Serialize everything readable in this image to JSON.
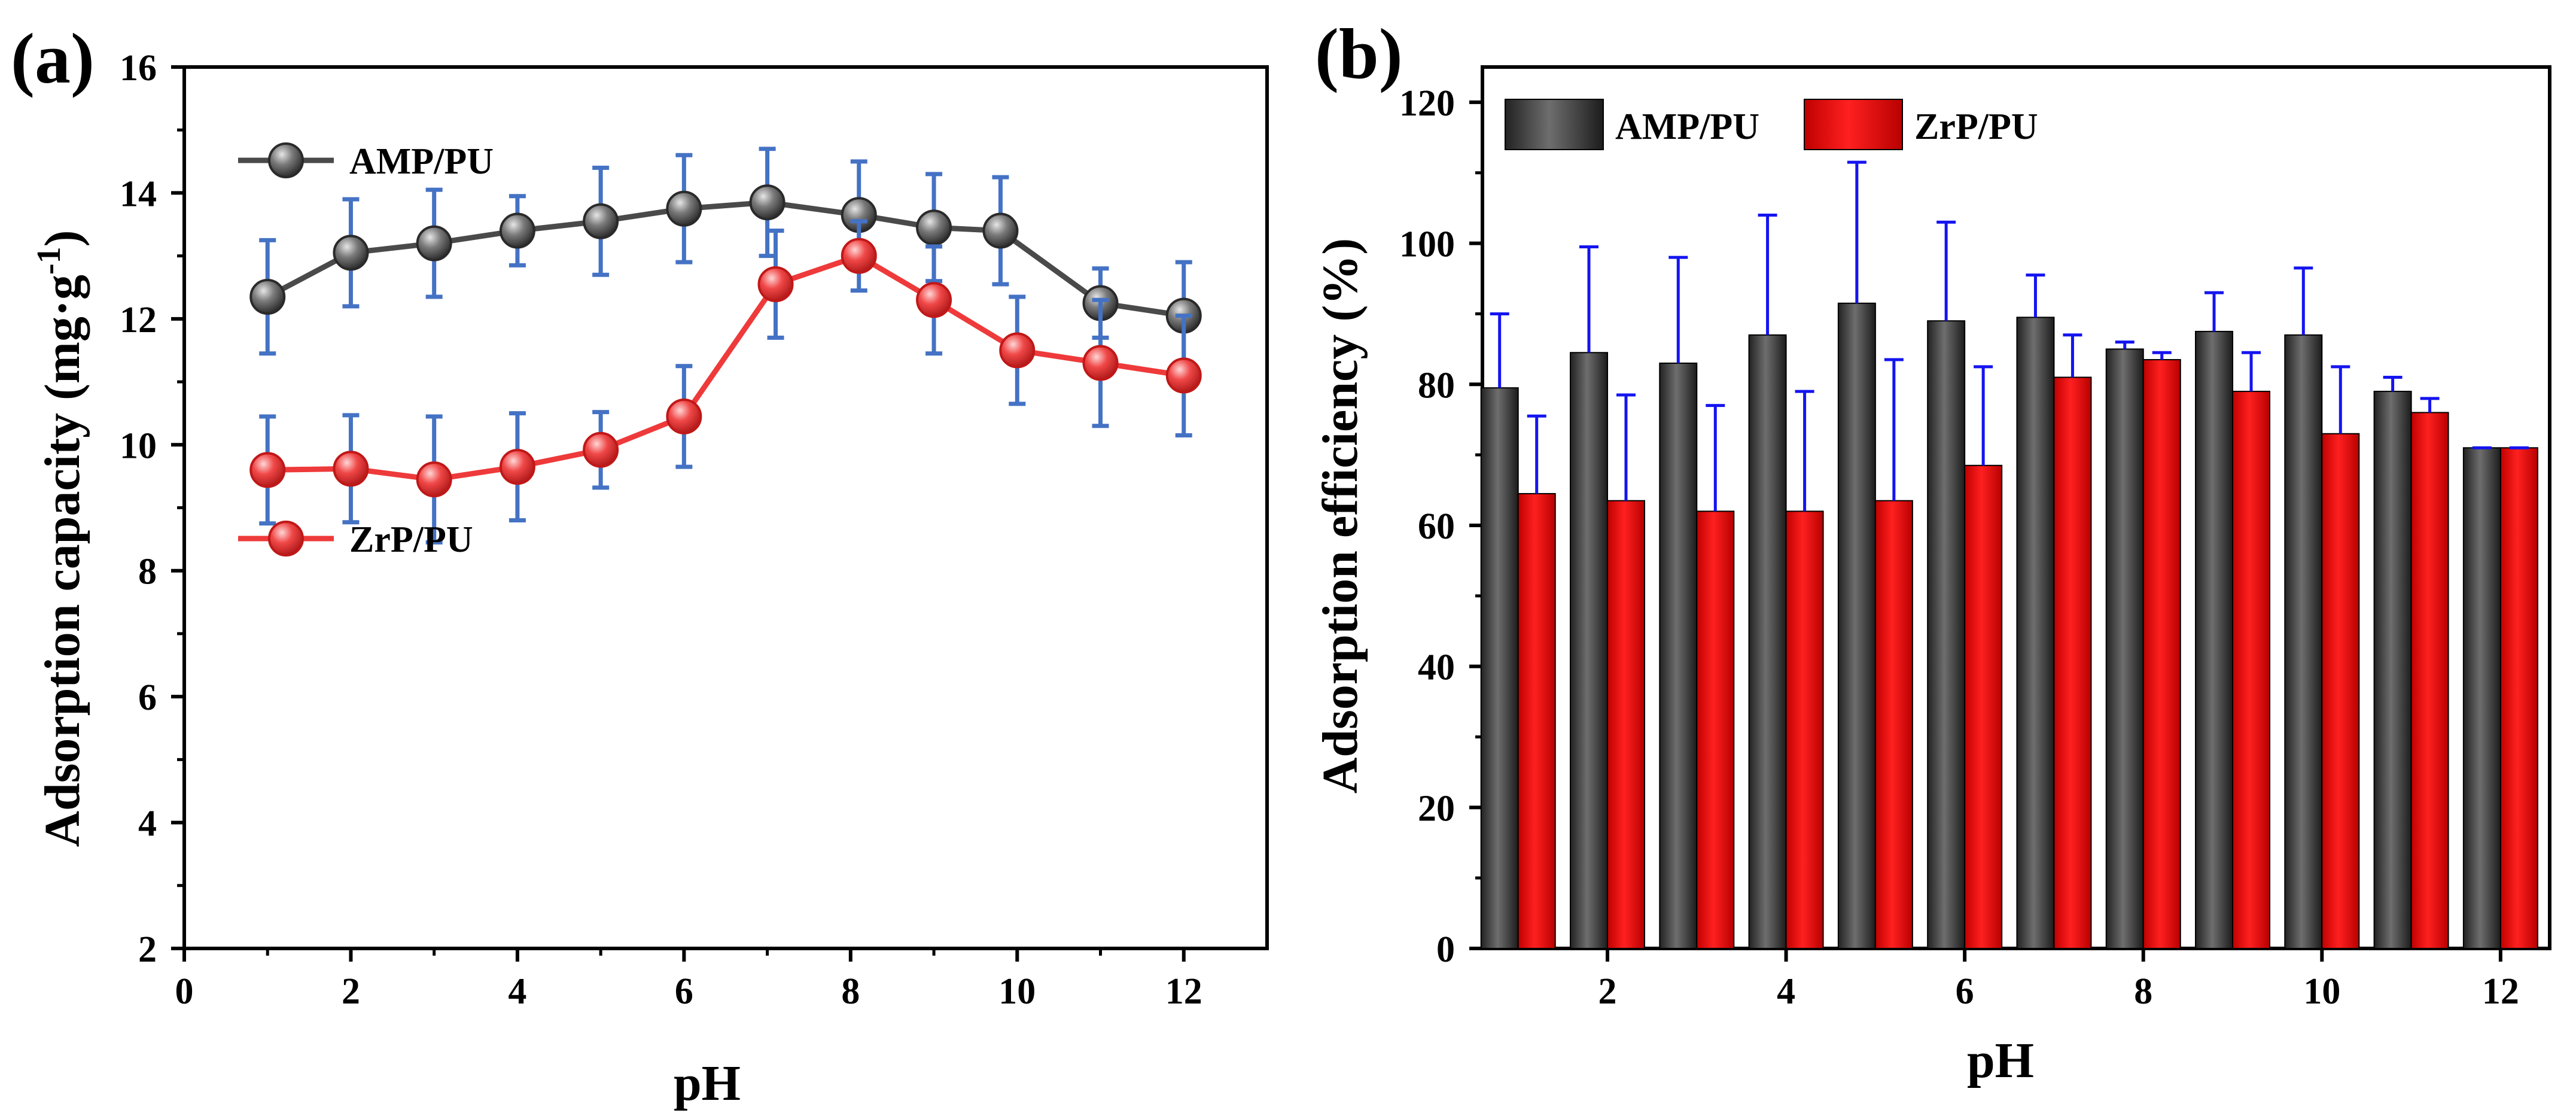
{
  "chart_data": [
    {
      "type": "line",
      "panel_label": "(a)",
      "xlabel": "pH",
      "ylabel": "Adsorption capacity (mg·g",
      "ylabel_sup": "-1",
      "ylabel_tail": ")",
      "xlim": [
        0,
        13
      ],
      "ylim": [
        2,
        16
      ],
      "xticks": [
        0,
        2,
        4,
        6,
        8,
        10,
        12
      ],
      "yticks": [
        2,
        4,
        6,
        8,
        10,
        12,
        14,
        16
      ],
      "legend_position": "left",
      "series": [
        {
          "name": "AMP/PU",
          "color": "#3d3d3d",
          "line_color": "#4a4a4a",
          "x": [
            1,
            2,
            3,
            4,
            5,
            6,
            7,
            8.1,
            9,
            9.8,
            11,
            12
          ],
          "y": [
            12.35,
            13.05,
            13.2,
            13.4,
            13.55,
            13.75,
            13.85,
            13.65,
            13.45,
            13.4,
            12.25,
            12.05
          ],
          "err": [
            0.9,
            0.85,
            0.85,
            0.55,
            0.85,
            0.85,
            0.85,
            0.85,
            0.85,
            0.85,
            0.55,
            0.85
          ]
        },
        {
          "name": "ZrP/PU",
          "color": "#e8222d",
          "line_color": "#ee3a3a",
          "x": [
            1,
            2,
            3,
            4,
            5,
            6,
            7.1,
            8.1,
            9,
            10,
            11,
            12
          ],
          "y": [
            9.6,
            9.62,
            9.45,
            9.65,
            9.92,
            10.45,
            12.55,
            13.0,
            12.3,
            11.5,
            11.3,
            11.1
          ],
          "err": [
            0.85,
            0.85,
            1.0,
            0.85,
            0.6,
            0.8,
            0.85,
            0.55,
            0.85,
            0.85,
            1.0,
            0.95
          ]
        }
      ],
      "error_bar_color": "#4472c4"
    },
    {
      "type": "bar",
      "panel_label": "(b)",
      "xlabel": "pH",
      "ylabel": "Adsorption efficiency (%)",
      "categories": [
        1,
        2,
        3,
        4,
        5,
        6,
        7,
        8,
        9,
        10,
        11,
        12
      ],
      "xticks": [
        2,
        4,
        6,
        8,
        10,
        12
      ],
      "yticks": [
        0,
        20,
        40,
        60,
        80,
        100,
        120
      ],
      "ylim": [
        0,
        125
      ],
      "legend_position": "top-left",
      "error_bar_color": "#1414f0",
      "series": [
        {
          "name": "AMP/PU",
          "color": "#2b2b2b",
          "values": [
            79.5,
            84.5,
            83,
            87,
            91.5,
            89,
            89.5,
            85,
            87.5,
            87,
            79,
            71
          ],
          "err": [
            10.5,
            15,
            15,
            17,
            20,
            14,
            6,
            1,
            5.5,
            9.5,
            2,
            0
          ]
        },
        {
          "name": "ZrP/PU",
          "color": "#e80000",
          "values": [
            64.5,
            63.5,
            62,
            62,
            63.5,
            68.5,
            81,
            83.5,
            79,
            73,
            76,
            71
          ],
          "err": [
            11,
            15,
            15,
            17,
            20,
            14,
            6,
            1,
            5.5,
            9.5,
            2,
            0
          ]
        }
      ]
    }
  ]
}
